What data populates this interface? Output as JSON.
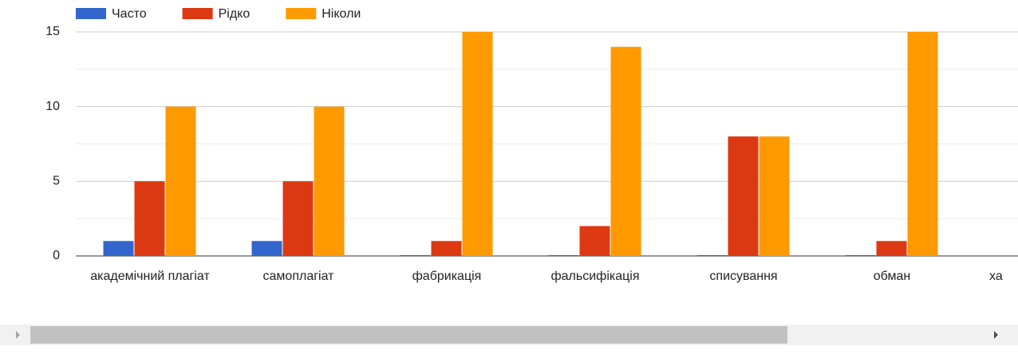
{
  "chart_data": {
    "type": "bar",
    "categories": [
      "академічний плагіат",
      "самоплагіат",
      "фабрикація",
      "фальсифікація",
      "списування",
      "обман",
      "ха"
    ],
    "series": [
      {
        "name": "Часто",
        "color": "#3366cc",
        "values": [
          1,
          1,
          0,
          0,
          0,
          0,
          null
        ]
      },
      {
        "name": "Рідко",
        "color": "#dc3912",
        "values": [
          5,
          5,
          1,
          2,
          8,
          1,
          null
        ]
      },
      {
        "name": "Ніколи",
        "color": "#ff9900",
        "values": [
          10,
          10,
          15,
          14,
          8,
          15,
          null
        ]
      }
    ],
    "ylim": [
      0,
      15
    ],
    "yticks": [
      0,
      5,
      10,
      15
    ],
    "minor_yticks": [
      2.5,
      7.5,
      12.5
    ],
    "grid": true,
    "legend": "top"
  }
}
